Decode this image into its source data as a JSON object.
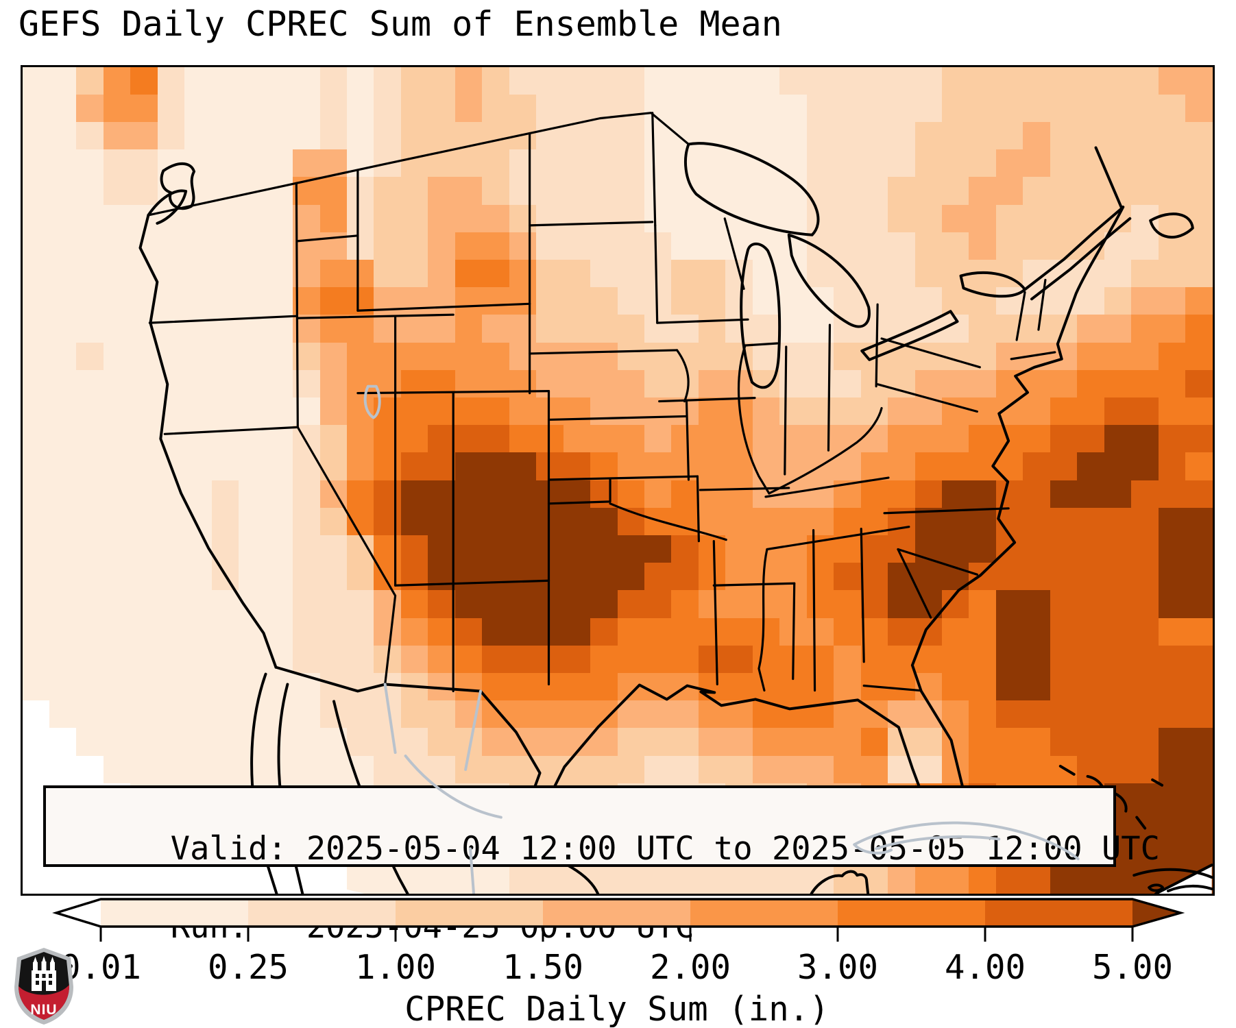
{
  "title": "GEFS Daily CPREC Sum of Ensemble Mean",
  "info_box": {
    "valid_line": "Valid: 2025-05-04 12:00 UTC to 2025-05-05 12:00 UTC",
    "run_line": "Run:   2025-04-25 00:00 UTC"
  },
  "colorbar": {
    "label": "CPREC Daily Sum (in.)",
    "tick_labels": [
      "0.01",
      "0.25",
      "1.00",
      "1.50",
      "2.00",
      "3.00",
      "4.00",
      "5.00"
    ],
    "levels_in": [
      0.01,
      0.25,
      1.0,
      1.5,
      2.0,
      3.0,
      4.0,
      5.0
    ],
    "segment_colors": [
      "#fdeddd",
      "#fcdfc5",
      "#fbcda2",
      "#fcb179",
      "#fa9648",
      "#f47c20",
      "#dc600f"
    ],
    "under_color": "#ffffff",
    "over_color": "#8f3804",
    "outline_color": "#000000"
  },
  "logo": {
    "text": "NIU",
    "shield_dark": "#141414",
    "shield_red": "#c41e30",
    "shield_gray": "#b9bcbf"
  },
  "map": {
    "border_color": "#000000",
    "coast_color": "#000000",
    "foreign_color": "#b9c2cc",
    "palette": [
      "#ffffff",
      "#fdeddd",
      "#fcdfc5",
      "#fbcda2",
      "#fcb179",
      "#fa9648",
      "#f47c20",
      "#dc600f",
      "#8f3804"
    ],
    "grid_cols": 44,
    "grid_rows": 30,
    "grid": [
      "11356211111212334322222111112222223333333344",
      "11455211111212334332222111111222223333333334",
      "11244211111212333332222111111222233334333333",
      "11122111114412333322222111111222233344333333",
      "11122111115523344322222111111222333443333333",
      "11111111114523344432222111111222334433333233",
      "11111111114423345542222211111222233433332233",
      "11111111114553346653322233211222233332222333",
      "11111111115664445553332233211122223322223445",
      "11111111114554445443333223221122222333344556",
      "11211111113455555544443333322233333344455566",
      "11111111112455665554444334432223344455566667",
      "11111111111456666655544445543333445555667766",
      "11111111112356677766555455544444555666778877",
      "11111111112356778887765555544445566667788876",
      "11111112112467888888876565544456678877888777",
      "11111112112367888888887665555566788877777788",
      "11111112112236788888888876555667788877777788",
      "11111112112236788888888776555677888777777788",
      "11111111112224678888887765555667887688777788",
      "11111111112224567888876666665566776688777766",
      "11111111112223456777766667766656666688777777",
      "11111111111222345666665556666656656688777777",
      "01111111111222334555554445566655445677777777",
      "00111111111122233444443334455556335666777788",
      "00011111111112223333333223344455225666677788",
      "00001111111112222233332222333445566766678888",
      "00000000111111122223322222223445667777778888",
      "00000000001111111222222222222334566777888888",
      "00000000000011111122222222222233455677888888"
    ]
  },
  "chart_data": {
    "type": "heatmap",
    "title": "GEFS Daily CPREC Sum of Ensemble Mean",
    "units": "in.",
    "levels_in": [
      0.01,
      0.25,
      1.0,
      1.5,
      2.0,
      3.0,
      4.0,
      5.0
    ],
    "legend_label": "CPREC Daily Sum (in.)",
    "valid": "2025-05-04 12:00 UTC to 2025-05-05 12:00 UTC",
    "run": "2025-04-25 00:00 UTC"
  }
}
